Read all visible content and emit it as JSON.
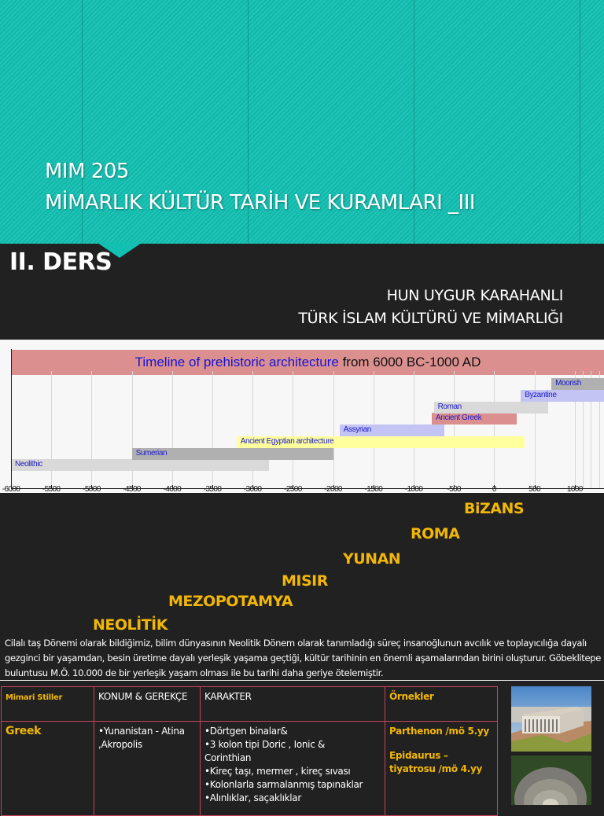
{
  "header": {
    "course_code": "MIM 205",
    "course_title": "MİMARLIK KÜLTÜR TARİH VE KURAMLARI _III",
    "lesson": "II. DERS",
    "subtitle_line1": "HUN UYGUR KARAHANLI",
    "subtitle_line2": "TÜRK İSLAM KÜLTÜRÜ VE MİMARLIĞI",
    "accent_color": "#12bfb1"
  },
  "chart_data": {
    "type": "bar",
    "title": "Timeline of prehistoric architecture from 6000 BC-1000 AD",
    "title_parts": [
      "Timeline of prehistoric architecture",
      " from 6000 BC-1000 AD"
    ],
    "xlabel": "",
    "ylabel": "",
    "xlim": [
      -6000,
      1350
    ],
    "grid": true,
    "ticks": [
      "-6000",
      "-5500",
      "-5000",
      "-4500",
      "-4000",
      "-3500",
      "-3000",
      "-2500",
      "-2000",
      "-1500",
      "-1000",
      "-500",
      "0",
      "500",
      "1000"
    ],
    "series": [
      {
        "name": "Neolithic",
        "start": -6000,
        "end": -2800,
        "color": "#d9d9d9"
      },
      {
        "name": "Sumerian",
        "start": -4500,
        "end": -2000,
        "color": "#b0b0b0"
      },
      {
        "name": "Ancient Egyptian architecture",
        "start": -3200,
        "end": 380,
        "color": "#ffff9e"
      },
      {
        "name": "Assyrian",
        "start": -1920,
        "end": -620,
        "color": "#c4c4f4"
      },
      {
        "name": "Ancient Greek",
        "start": -775,
        "end": 275,
        "color": "#dc8f8f"
      },
      {
        "name": "Roman",
        "start": -750,
        "end": 670,
        "color": "#d9d9d9"
      },
      {
        "name": "Byzantine",
        "start": 330,
        "end": 1453,
        "color": "#c4c4f4"
      },
      {
        "name": "Moorish",
        "start": 710,
        "end": 1492,
        "color": "#b0b0b0"
      }
    ]
  },
  "eras": [
    {
      "label": "BiZANS"
    },
    {
      "label": "ROMA"
    },
    {
      "label": "YUNAN"
    },
    {
      "label": "MISIR"
    },
    {
      "label": "MEZOPOTAMYA"
    },
    {
      "label": "NEOLİTİK"
    }
  ],
  "paragraph": "Cilalı taş Dönemi olarak bildiğimiz, bilim dünyasının Neolitik Dönem olarak tanımladığı süreç insanoğlunun avcılık ve toplayıcılığa dayalı gezginci bir yaşamdan, besin üretime dayalı yerleşik yaşama geçtiği, kültür tarihinin en önemli aşamalarından birini oluşturur. Göbeklitepe buluntusu M.Ö. 10.000 de bir yerleşik yaşam olması ile bu tarihi daha geriye ötelemiştir.",
  "table": {
    "headers": [
      "Mimari Stiller",
      "KONUM  & GEREKÇE",
      "KARAKTER",
      "Örnekler"
    ],
    "rows": [
      {
        "style": "Greek",
        "location": [
          "•Yunanistan - Atina",
          ",Akropolis"
        ],
        "character": [
          "•Dörtgen binalar&",
          "•3 kolon tipi Doric , Ionic &",
          "Corinthian",
          "•Kireç taşı, mermer , kireç sıvası",
          "•Kolonlarla sarmalanmış tapınaklar",
          "•Alınlıklar, saçaklıklar"
        ],
        "examples": [
          "Parthenon /mö 5.yy",
          "Epidaurus – tiyatrosu /mö 4.yy"
        ]
      }
    ]
  },
  "images": [
    {
      "alt": "Parthenon reconstruction"
    },
    {
      "alt": "Epidaurus theatre aerial"
    }
  ]
}
